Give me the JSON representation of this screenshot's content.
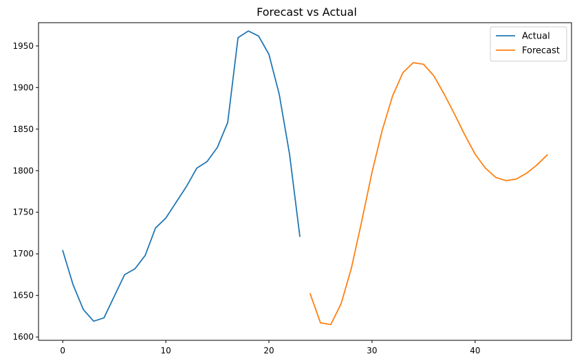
{
  "chart_data": {
    "type": "line",
    "title": "Forecast vs Actual",
    "xlabel": "",
    "ylabel": "",
    "xlim": [
      -2.35,
      49.35
    ],
    "ylim": [
      1596,
      1978
    ],
    "xticks": [
      0,
      10,
      20,
      30,
      40
    ],
    "yticks": [
      1600,
      1650,
      1700,
      1750,
      1800,
      1850,
      1900,
      1950
    ],
    "grid": false,
    "legend_position": "top-right",
    "series": [
      {
        "name": "Actual",
        "color": "#1f77b4",
        "x": [
          0,
          1,
          2,
          3,
          4,
          5,
          6,
          7,
          8,
          9,
          10,
          11,
          12,
          13,
          14,
          15,
          16,
          17,
          18,
          19,
          20,
          21,
          22,
          23
        ],
        "y": [
          1704,
          1663,
          1633,
          1619,
          1623,
          1649,
          1675,
          1682,
          1698,
          1731,
          1743,
          1762,
          1781,
          1803,
          1811,
          1828,
          1858,
          1960,
          1968,
          1962,
          1940,
          1892,
          1820,
          1721
        ]
      },
      {
        "name": "Forecast",
        "color": "#ff7f0e",
        "x": [
          24,
          25,
          26,
          27,
          28,
          29,
          30,
          31,
          32,
          33,
          34,
          35,
          36,
          37,
          38,
          39,
          40,
          41,
          42,
          43,
          44,
          45,
          46,
          47
        ],
        "y": [
          1652,
          1617,
          1615,
          1640,
          1683,
          1739,
          1798,
          1849,
          1890,
          1918,
          1930,
          1928,
          1914,
          1892,
          1868,
          1843,
          1820,
          1803,
          1792,
          1788,
          1790,
          1797,
          1807,
          1819
        ]
      }
    ]
  }
}
